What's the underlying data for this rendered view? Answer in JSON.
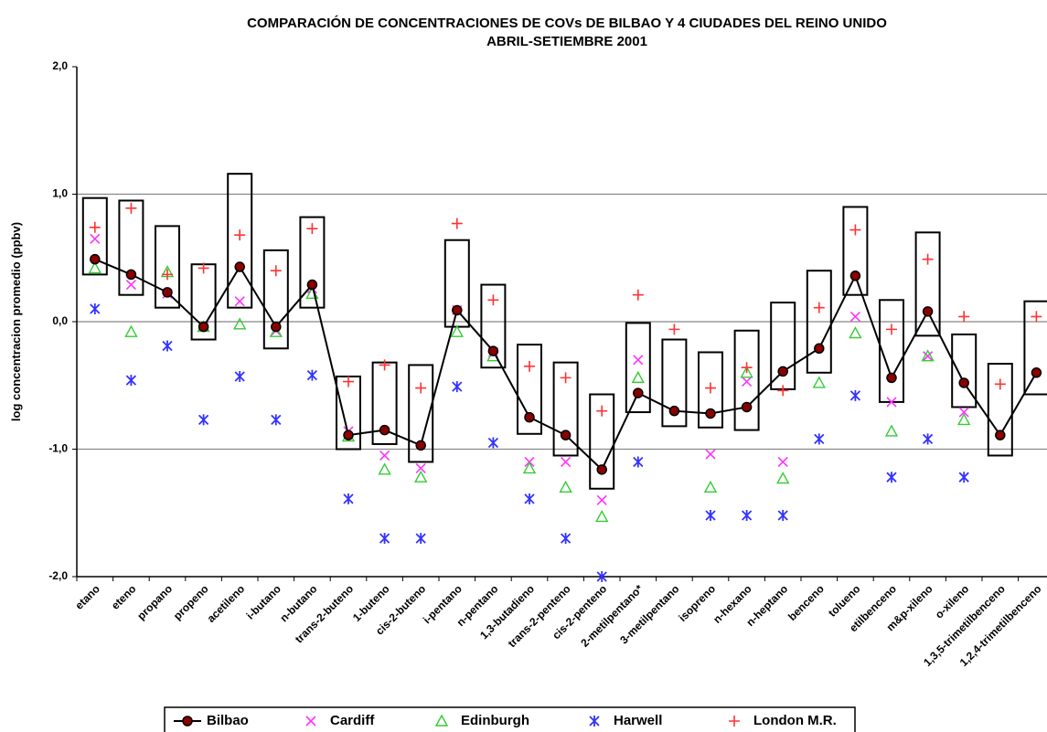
{
  "chart_data": {
    "type": "range-scatter",
    "title": "COMPARACIÓN DE CONCENTRACIONES DE COVs DE BILBAO Y 4 CIUDADES DEL REINO UNIDO",
    "subtitle": "ABRIL-SETIEMBRE 2001",
    "y_label": "log concentracion promedio (ppbv)",
    "categories": [
      "etano",
      "eteno",
      "propano",
      "propeno",
      "acetileno",
      "i-butano",
      "n-butano",
      "trans-2-buteno",
      "1-buteno",
      "cis-2-buteno",
      "i-pentano",
      "n-pentano",
      "1,3-butadieno",
      "trans-2-penteno",
      "cis-2-penteno",
      "2-metilpentano*",
      "3-metilpentano",
      "isopreno",
      "n-hexano",
      "n-heptano",
      "benceno",
      "tolueno",
      "etilbenceno",
      "m&p-xileno",
      "o-xileno",
      "1,3,5-trimetilbenceno",
      "1,2,4-trimetilbenceno"
    ],
    "ranges": [
      [
        0.37,
        0.97
      ],
      [
        0.21,
        0.95
      ],
      [
        0.11,
        0.75
      ],
      [
        -0.14,
        0.45
      ],
      [
        0.11,
        1.16
      ],
      [
        -0.21,
        0.56
      ],
      [
        0.11,
        0.82
      ],
      [
        -1.0,
        -0.43
      ],
      [
        -0.96,
        -0.32
      ],
      [
        -1.1,
        -0.34
      ],
      [
        -0.04,
        0.64
      ],
      [
        -0.36,
        0.29
      ],
      [
        -0.88,
        -0.18
      ],
      [
        -1.05,
        -0.32
      ],
      [
        -1.31,
        -0.57
      ],
      [
        -0.71,
        -0.01
      ],
      [
        -0.82,
        -0.14
      ],
      [
        -0.83,
        -0.24
      ],
      [
        -0.85,
        -0.07
      ],
      [
        -0.53,
        0.15
      ],
      [
        -0.4,
        0.4
      ],
      [
        0.21,
        0.9
      ],
      [
        -0.63,
        0.17
      ],
      [
        -0.11,
        0.7
      ],
      [
        -0.67,
        -0.1
      ],
      [
        -1.05,
        -0.33
      ],
      [
        -0.57,
        0.16
      ]
    ],
    "series": [
      {
        "name": "Bilbao",
        "color": "#8b0000",
        "marker": "circle",
        "line": true,
        "values": [
          0.49,
          0.37,
          0.23,
          -0.04,
          0.43,
          -0.04,
          0.29,
          -0.89,
          -0.85,
          -0.97,
          0.09,
          -0.23,
          -0.75,
          -0.89,
          -1.16,
          -0.56,
          -0.7,
          -0.72,
          -0.67,
          -0.39,
          -0.21,
          0.36,
          -0.44,
          0.08,
          -0.48,
          -0.89,
          -0.4
        ]
      },
      {
        "name": "Cardiff",
        "color": "#ff33ff",
        "marker": "x",
        "line": false,
        "values": [
          0.65,
          0.29,
          0.22,
          -0.04,
          0.16,
          -0.07,
          0.26,
          -0.86,
          -1.05,
          -1.15,
          0.09,
          -0.24,
          -1.1,
          -1.1,
          -1.4,
          -0.3,
          null,
          -1.04,
          -0.47,
          -1.1,
          null,
          0.04,
          -0.63,
          -0.27,
          -0.71,
          null,
          null
        ]
      },
      {
        "name": "Edinburgh",
        "color": "#33cc33",
        "marker": "triangle",
        "line": false,
        "values": [
          0.42,
          -0.08,
          0.39,
          -0.04,
          -0.02,
          -0.08,
          0.22,
          -0.9,
          -1.16,
          -1.22,
          -0.08,
          -0.27,
          -1.15,
          -1.3,
          -1.53,
          -0.44,
          null,
          -1.3,
          -0.4,
          -1.23,
          -0.48,
          -0.09,
          -0.86,
          -0.27,
          -0.77,
          null,
          null
        ]
      },
      {
        "name": "Harwell",
        "color": "#3333ff",
        "marker": "asterisk",
        "line": false,
        "values": [
          0.1,
          -0.46,
          -0.19,
          -0.77,
          -0.43,
          -0.77,
          -0.42,
          -1.39,
          -1.7,
          -1.7,
          -0.51,
          -0.95,
          -1.39,
          -1.7,
          -2.0,
          -1.1,
          null,
          -1.52,
          -1.52,
          -1.52,
          -0.92,
          -0.58,
          -1.22,
          -0.92,
          -1.22,
          null,
          null
        ]
      },
      {
        "name": "London M.R.",
        "color": "#ff3333",
        "marker": "plus",
        "line": false,
        "values": [
          0.74,
          0.89,
          0.37,
          0.42,
          0.68,
          0.4,
          0.73,
          -0.47,
          -0.34,
          -0.52,
          0.77,
          0.17,
          -0.35,
          -0.44,
          -0.7,
          0.21,
          -0.06,
          -0.52,
          -0.36,
          -0.54,
          0.11,
          0.72,
          -0.06,
          0.49,
          0.04,
          -0.49,
          0.04
        ]
      }
    ],
    "ylim": [
      -2.0,
      2.0
    ],
    "yticks": [
      {
        "value": -2.0,
        "label": "-2,0"
      },
      {
        "value": -1.0,
        "label": "-1,0"
      },
      {
        "value": 0.0,
        "label": "0,0"
      },
      {
        "value": 1.0,
        "label": "1,0"
      },
      {
        "value": 2.0,
        "label": "2,0"
      }
    ],
    "grid": true,
    "legend": "bottom"
  }
}
